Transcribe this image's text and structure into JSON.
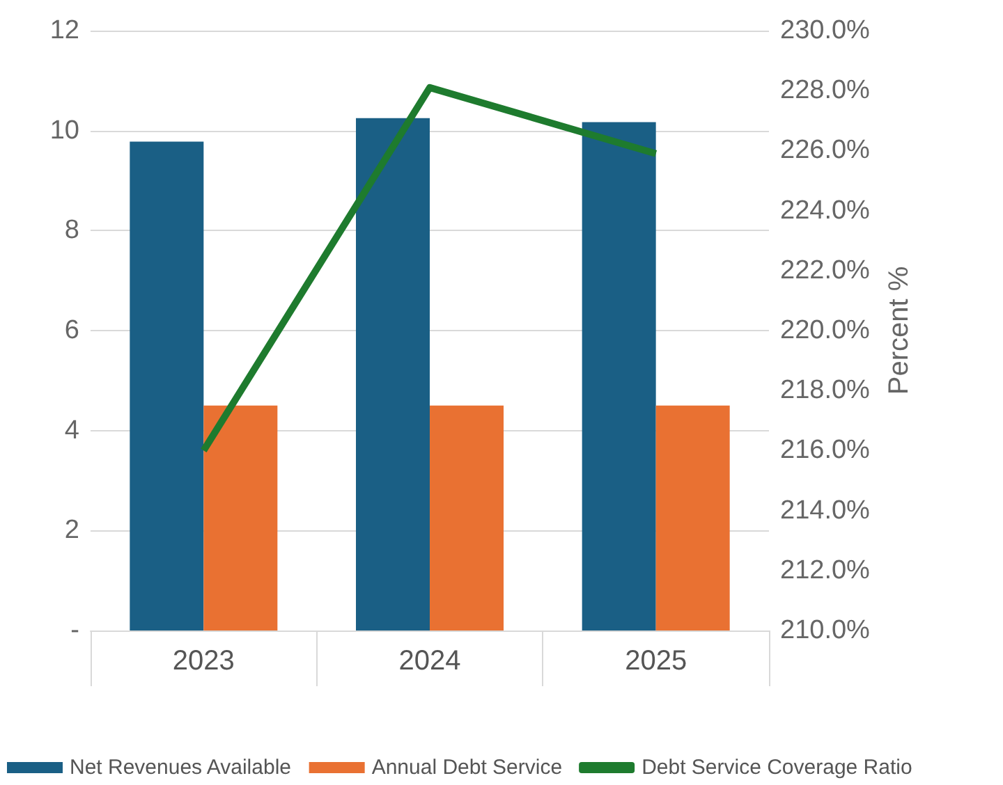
{
  "chart_data": {
    "type": "bar",
    "categories": [
      "2023",
      "2024",
      "2025"
    ],
    "series": [
      {
        "name": "Net Revenues Available",
        "color": "#1a5f85",
        "values": [
          9.78,
          10.25,
          10.17
        ]
      },
      {
        "name": "Annual Debt Service",
        "color": "#e97132",
        "values": [
          4.5,
          4.5,
          4.5
        ]
      },
      {
        "name": "Debt Service Coverage Ratio",
        "type": "line",
        "axis": "y2",
        "color": "#1e7b2e",
        "values": [
          216.0,
          228.1,
          225.9
        ]
      }
    ],
    "y2label": "Percent %",
    "ylim": [
      0,
      12
    ],
    "yticks": [
      {
        "value": 0,
        "label": "-"
      },
      2,
      4,
      6,
      8,
      10,
      12
    ],
    "y2lim": [
      210,
      230
    ],
    "y2ticks": [
      {
        "value": 210,
        "label": "210.0%"
      },
      {
        "value": 212,
        "label": "212.0%"
      },
      {
        "value": 214,
        "label": "214.0%"
      },
      {
        "value": 216,
        "label": "216.0%"
      },
      {
        "value": 218,
        "label": "218.0%"
      },
      {
        "value": 220,
        "label": "220.0%"
      },
      {
        "value": 222,
        "label": "222.0%"
      },
      {
        "value": 224,
        "label": "224.0%"
      },
      {
        "value": 226,
        "label": "226.0%"
      },
      {
        "value": 228,
        "label": "228.0%"
      },
      {
        "value": 230,
        "label": "230.0%"
      }
    ],
    "grid": "y",
    "legend": "bottom",
    "marker": "none"
  }
}
